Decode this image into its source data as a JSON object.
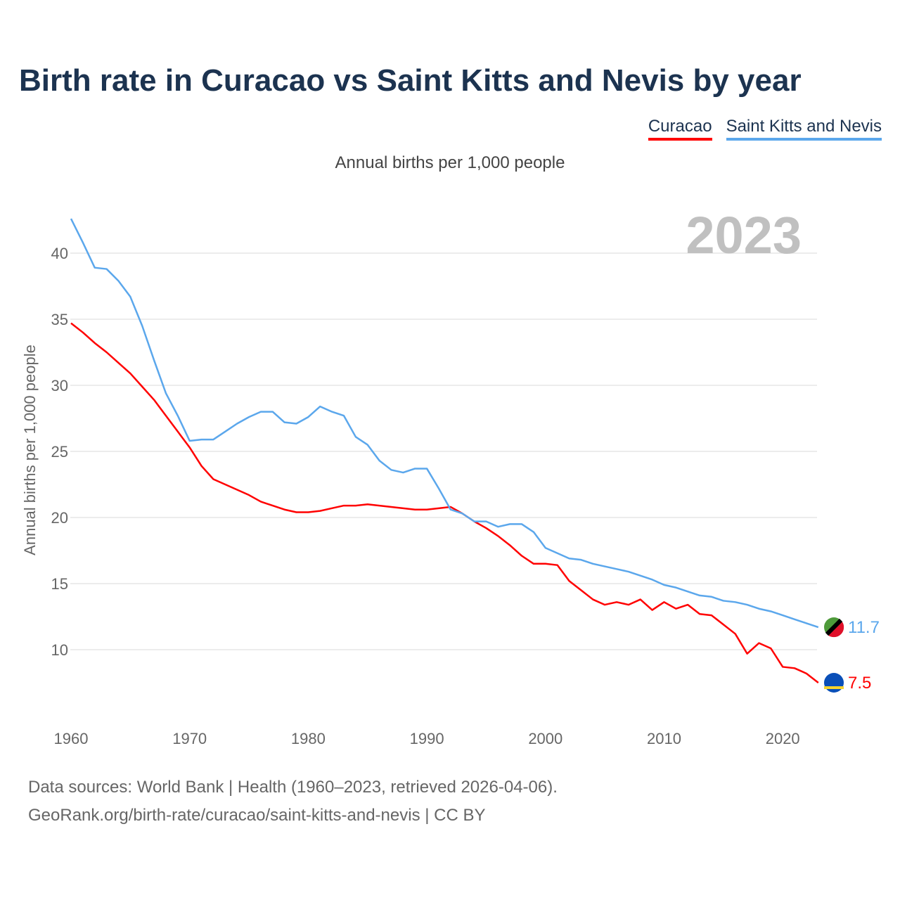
{
  "chart_data": {
    "type": "line",
    "title": "Birth rate in Curacao vs Saint Kitts and Nevis by year",
    "subtitle": "Annual births per 1,000 people",
    "ylabel": "Annual births per 1,000 people",
    "xlabel": "",
    "year_label": "2023",
    "xlim": [
      1960,
      2023
    ],
    "ylim": [
      5,
      43
    ],
    "yticks": [
      10,
      15,
      20,
      25,
      30,
      35,
      40
    ],
    "xticks": [
      1960,
      1970,
      1980,
      1990,
      2000,
      2010,
      2020
    ],
    "grid": true,
    "legend_position": "top-right",
    "x_start": 1960,
    "series": [
      {
        "name": "Curacao",
        "color": "#ff0000",
        "end_label": "7.5",
        "values": [
          34.7,
          34.0,
          33.2,
          32.5,
          31.7,
          30.9,
          29.9,
          28.9,
          27.7,
          26.5,
          25.3,
          23.9,
          22.9,
          22.5,
          22.1,
          21.7,
          21.2,
          20.9,
          20.6,
          20.4,
          20.4,
          20.5,
          20.7,
          20.9,
          20.9,
          21.0,
          20.9,
          20.8,
          20.7,
          20.6,
          20.6,
          20.7,
          20.8,
          20.3,
          19.7,
          19.2,
          18.6,
          17.9,
          17.1,
          16.5,
          16.5,
          16.4,
          15.2,
          14.5,
          13.8,
          13.4,
          13.6,
          13.4,
          13.8,
          13.0,
          13.6,
          13.1,
          13.4,
          12.7,
          12.6,
          11.9,
          11.2,
          9.7,
          10.5,
          10.1,
          8.7,
          8.6,
          8.2,
          7.5
        ]
      },
      {
        "name": "Saint Kitts and Nevis",
        "color": "#5ba7ec",
        "end_label": "11.7",
        "values": [
          42.6,
          40.8,
          38.9,
          38.8,
          37.9,
          36.7,
          34.5,
          31.9,
          29.4,
          27.7,
          25.8,
          25.9,
          25.9,
          26.5,
          27.1,
          27.6,
          28.0,
          28.0,
          27.2,
          27.1,
          27.6,
          28.4,
          28.0,
          27.7,
          26.1,
          25.5,
          24.3,
          23.6,
          23.4,
          23.7,
          23.7,
          22.2,
          20.6,
          20.3,
          19.7,
          19.7,
          19.3,
          19.5,
          19.5,
          18.9,
          17.7,
          17.3,
          16.9,
          16.8,
          16.5,
          16.3,
          16.1,
          15.9,
          15.6,
          15.3,
          14.9,
          14.7,
          14.4,
          14.1,
          14.0,
          13.7,
          13.6,
          13.4,
          13.1,
          12.9,
          12.6,
          12.3,
          12.0,
          11.7
        ]
      }
    ]
  },
  "footer": {
    "line1": "Data sources: World Bank | Health (1960–2023, retrieved 2026-04-06).",
    "line2": "GeoRank.org/birth-rate/curacao/saint-kitts-and-nevis | CC BY"
  }
}
